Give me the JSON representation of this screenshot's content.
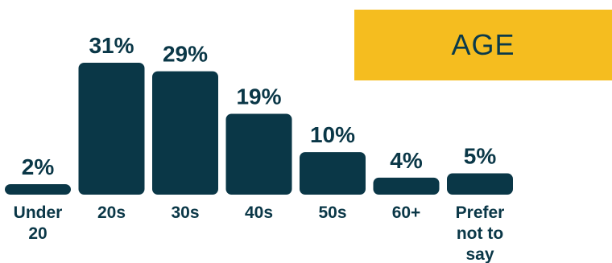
{
  "chart_data": {
    "type": "bar",
    "title": "AGE",
    "categories": [
      "Under 20",
      "20s",
      "30s",
      "40s",
      "50s",
      "60+",
      "Prefer not to say"
    ],
    "category_lines": [
      [
        "Under",
        "20"
      ],
      [
        "20s"
      ],
      [
        "30s"
      ],
      [
        "40s"
      ],
      [
        "50s"
      ],
      [
        "60+"
      ],
      [
        "Prefer",
        "not to",
        "say"
      ]
    ],
    "values": [
      2,
      31,
      29,
      19,
      10,
      4,
      5
    ],
    "value_labels": [
      "2%",
      "31%",
      "29%",
      "19%",
      "10%",
      "4%",
      "5%"
    ],
    "ylim": [
      0,
      31
    ]
  },
  "colors": {
    "bar": "#0a3747",
    "text": "#0a3747",
    "title_bg": "#f5bd1f",
    "title_text": "#0a3a4a"
  }
}
